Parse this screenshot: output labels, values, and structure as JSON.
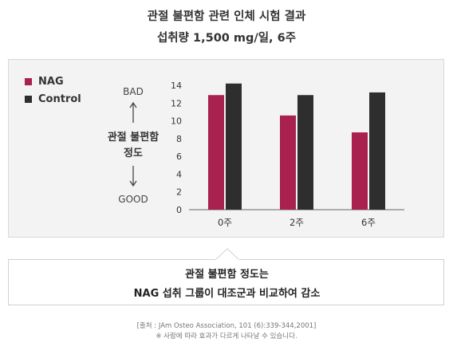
{
  "header": {
    "title_line1": "관절 불편함 관련 인체 시험 결과",
    "title_line2": "섭취량 1,500 mg/일, 6주"
  },
  "legend": [
    {
      "label": "NAG",
      "color": "#a8214f"
    },
    {
      "label": "Control",
      "color": "#2e2e2e"
    }
  ],
  "y_axis_annotation": {
    "top": "BAD",
    "label_line1": "관절 불편함",
    "label_line2": "정도",
    "bottom": "GOOD"
  },
  "chart_data": {
    "type": "bar",
    "categories": [
      "0주",
      "2주",
      "6주"
    ],
    "series": [
      {
        "name": "NAG",
        "color": "#a8214f",
        "values": [
          12.9,
          10.6,
          8.7
        ]
      },
      {
        "name": "Control",
        "color": "#2e2e2e",
        "values": [
          14.2,
          12.9,
          13.2
        ]
      }
    ],
    "ylim": [
      0,
      14
    ],
    "yticks": [
      0,
      2,
      4,
      6,
      8,
      10,
      12,
      14
    ],
    "legend_position": "top-left",
    "grid": false
  },
  "callout": {
    "line1": "관절 불편함 정도는",
    "line2": "NAG 섭취 그룹이 대조군과 비교하여 감소"
  },
  "source": {
    "line1": "[출처 : JAm Osteo Association, 101 (6):339-344,2001]",
    "line2": "※ 사람에 따라 효과가 다르게 나타날 수 있습니다."
  }
}
